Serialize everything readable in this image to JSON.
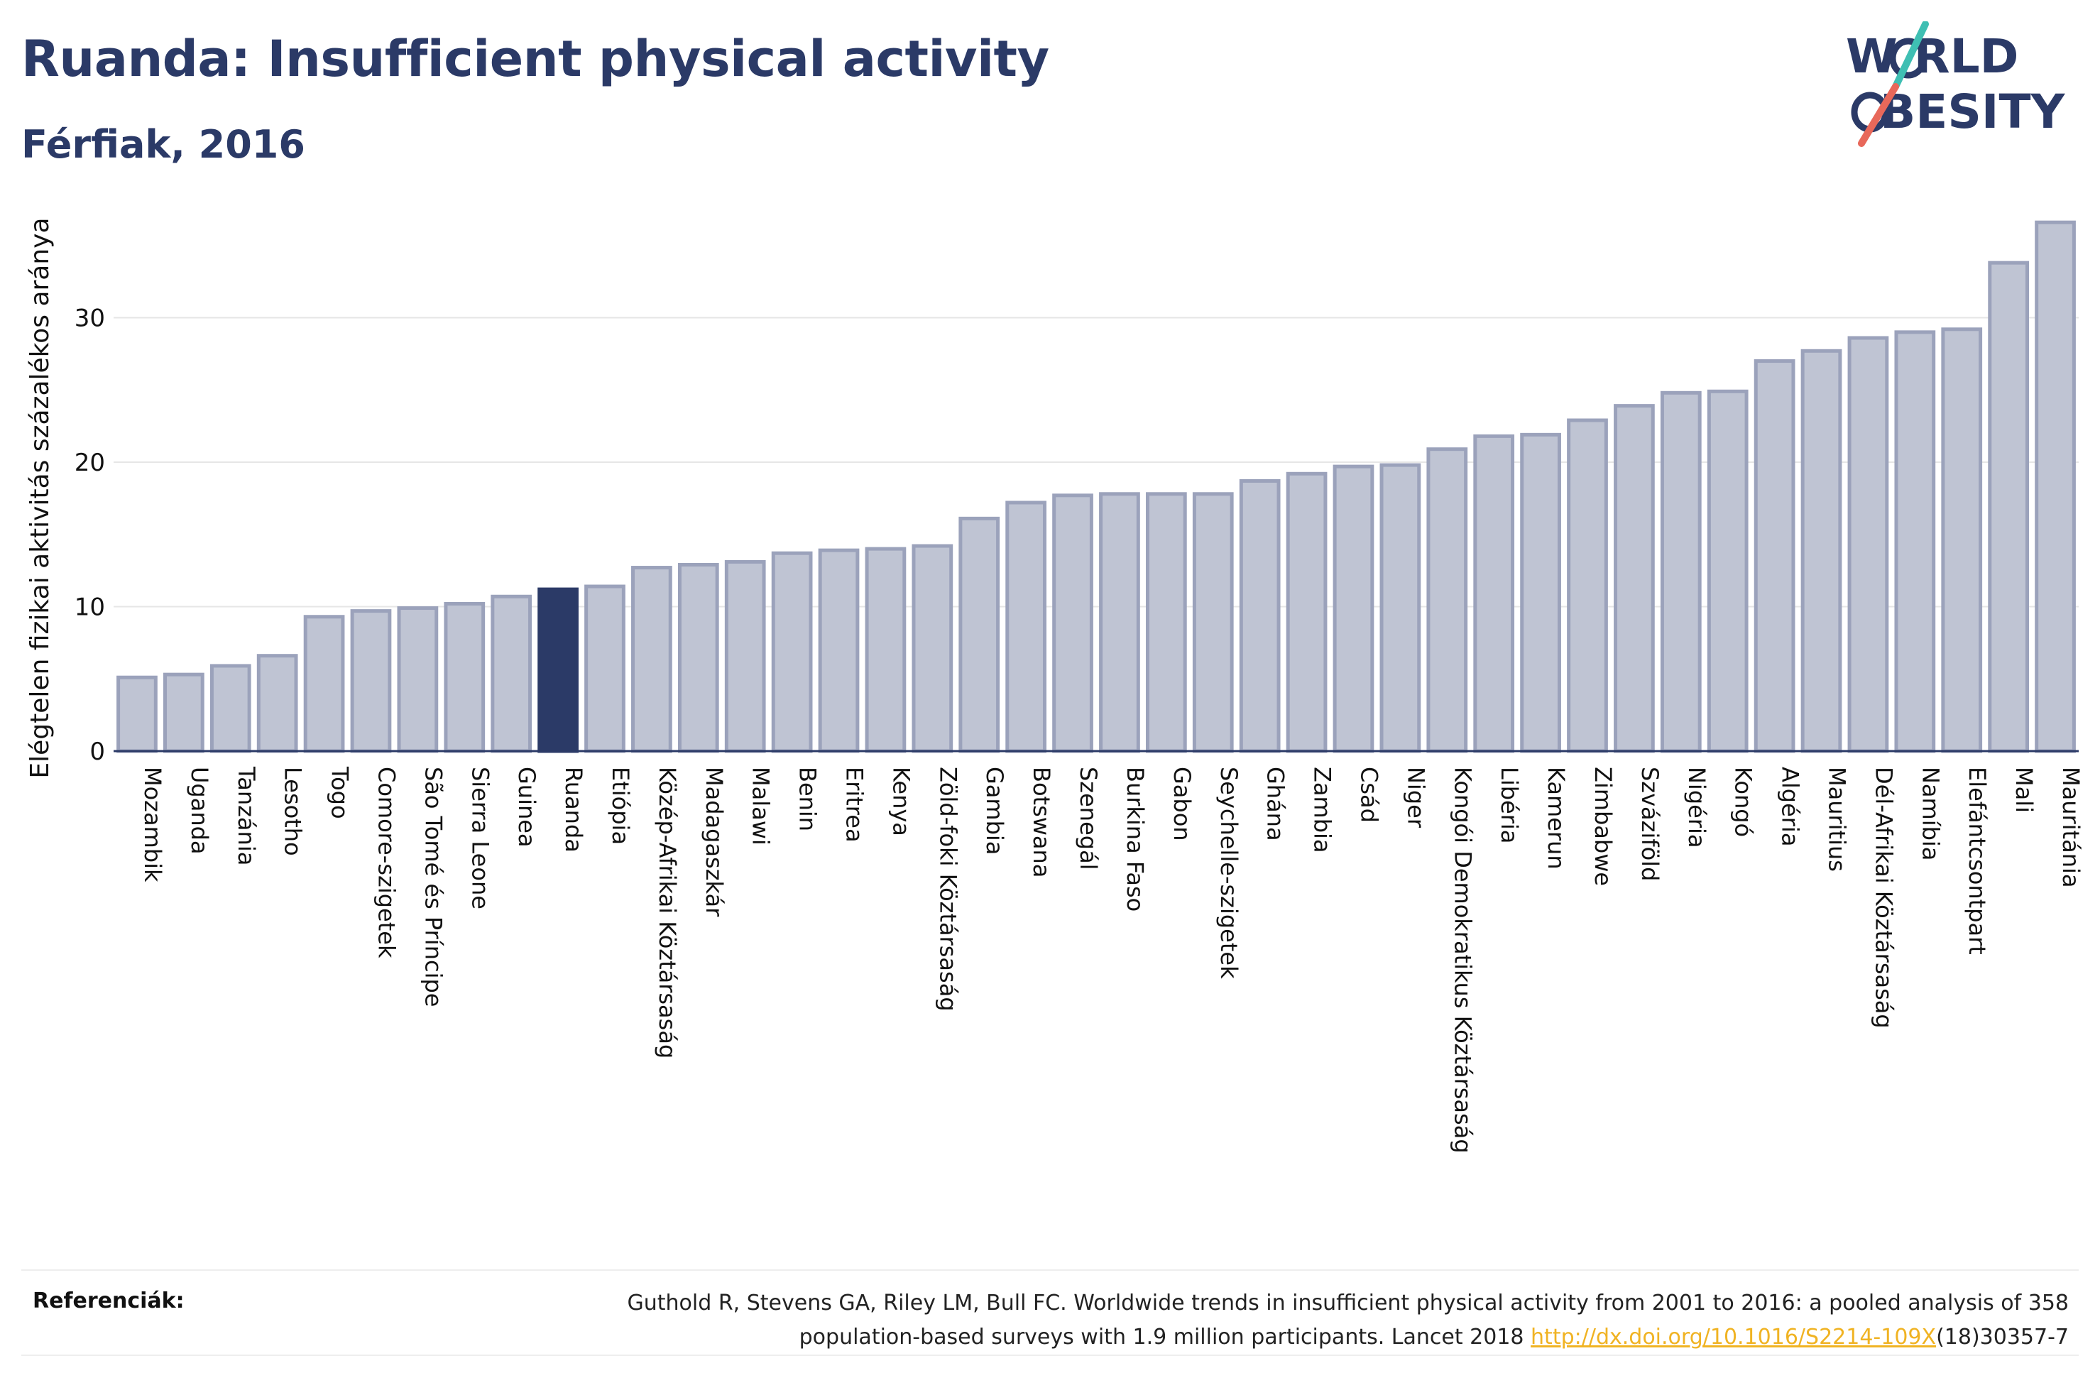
{
  "header": {
    "title": "Ruanda: Insufficient physical activity",
    "subtitle": "Férfiak, 2016"
  },
  "logo": {
    "line1": "W RLD",
    "line2": "BESITY",
    "accent_teal": "#3fbfb3",
    "accent_red": "#e8685a",
    "text_color": "#2b3a67"
  },
  "colors": {
    "bar_fill": "#bfc4d3",
    "bar_stroke": "#9ba2bb",
    "highlight_fill": "#2b3a67",
    "grid": "#e6e6e6",
    "axis": "#2b3a67"
  },
  "chart_data": {
    "type": "bar",
    "title": "Ruanda: Insufficient physical activity",
    "subtitle": "Férfiak, 2016",
    "xlabel": "",
    "ylabel": "Elégtelen fizikai aktivitás százalékos aránya",
    "ylim": [
      0,
      37
    ],
    "yticks": [
      0,
      10,
      20,
      30
    ],
    "grid": true,
    "highlight": "Ruanda",
    "categories": [
      "Mozambik",
      "Uganda",
      "Tanzánia",
      "Lesotho",
      "Togo",
      "Comore-szigetek",
      "São Tomé és Príncipe",
      "Sierra Leone",
      "Guinea",
      "Ruanda",
      "Etiópia",
      "Közép-Afrikai Köztársaság",
      "Madagaszkár",
      "Malawi",
      "Benin",
      "Eritrea",
      "Kenya",
      "Zöld-foki Köztársaság",
      "Gambia",
      "Botswana",
      "Szenegál",
      "Burkina Faso",
      "Gabon",
      "Seychelle-szigetek",
      "Ghána",
      "Zambia",
      "Csád",
      "Niger",
      "Kongói Demokratikus Köztársaság",
      "Libéria",
      "Kamerun",
      "Zimbabwe",
      "Szváziföld",
      "Nigéria",
      "Kongó",
      "Algéria",
      "Mauritius",
      "Dél-Afrikai Köztársaság",
      "Namíbia",
      "Elefántcsontpart",
      "Mali",
      "Mauritánia"
    ],
    "values": [
      5.1,
      5.3,
      5.9,
      6.6,
      9.3,
      9.7,
      9.9,
      10.2,
      10.7,
      11.2,
      11.4,
      12.7,
      12.9,
      13.1,
      13.7,
      13.9,
      14.0,
      14.2,
      16.1,
      17.2,
      17.7,
      17.8,
      17.8,
      17.8,
      18.7,
      19.2,
      19.7,
      19.8,
      20.9,
      21.8,
      21.9,
      22.9,
      23.9,
      24.8,
      24.9,
      27.0,
      27.7,
      28.6,
      29.0,
      29.2,
      33.8,
      36.6
    ]
  },
  "footer": {
    "label": "Referenciák:",
    "reference_line1": "Guthold R, Stevens GA, Riley LM, Bull FC. Worldwide trends in insufficient physical activity from 2001 to 2016: a pooled analysis of 358",
    "reference_line2_pre": "population-based surveys with 1.9 million participants. Lancet 2018 ",
    "reference_link": "http://dx.doi.org/10.1016/S2214-109X",
    "reference_line2_post": "(18)30357-7"
  }
}
